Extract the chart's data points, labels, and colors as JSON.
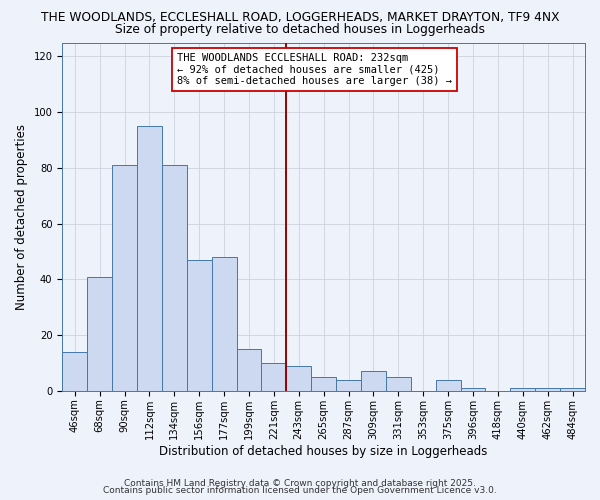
{
  "title": "THE WOODLANDS, ECCLESHALL ROAD, LOGGERHEADS, MARKET DRAYTON, TF9 4NX",
  "subtitle": "Size of property relative to detached houses in Loggerheads",
  "xlabel": "Distribution of detached houses by size in Loggerheads",
  "ylabel": "Number of detached properties",
  "categories": [
    "46sqm",
    "68sqm",
    "90sqm",
    "112sqm",
    "134sqm",
    "156sqm",
    "177sqm",
    "199sqm",
    "221sqm",
    "243sqm",
    "265sqm",
    "287sqm",
    "309sqm",
    "331sqm",
    "353sqm",
    "375sqm",
    "396sqm",
    "418sqm",
    "440sqm",
    "462sqm",
    "484sqm"
  ],
  "values": [
    14,
    41,
    81,
    95,
    81,
    47,
    48,
    15,
    10,
    9,
    5,
    4,
    7,
    5,
    0,
    4,
    1,
    0,
    1,
    1,
    1
  ],
  "bar_color": "#ccd9f0",
  "bar_edge_color": "#4477aa",
  "background_color": "#eef2fb",
  "grid_color": "#c8ccd8",
  "vline_position": 8.5,
  "vline_color": "#990000",
  "annotation_text": "THE WOODLANDS ECCLESHALL ROAD: 232sqm\n← 92% of detached houses are smaller (425)\n8% of semi-detached houses are larger (38) →",
  "annotation_box_facecolor": "#ffffff",
  "annotation_box_edgecolor": "#cc0000",
  "ylim": [
    0,
    125
  ],
  "yticks": [
    0,
    20,
    40,
    60,
    80,
    100,
    120
  ],
  "footer1": "Contains HM Land Registry data © Crown copyright and database right 2025.",
  "footer2": "Contains public sector information licensed under the Open Government Licence v3.0.",
  "title_fontsize": 8.8,
  "subtitle_fontsize": 8.8,
  "axis_label_fontsize": 8.5,
  "tick_fontsize": 7.2,
  "annotation_fontsize": 7.5,
  "footer_fontsize": 6.5
}
